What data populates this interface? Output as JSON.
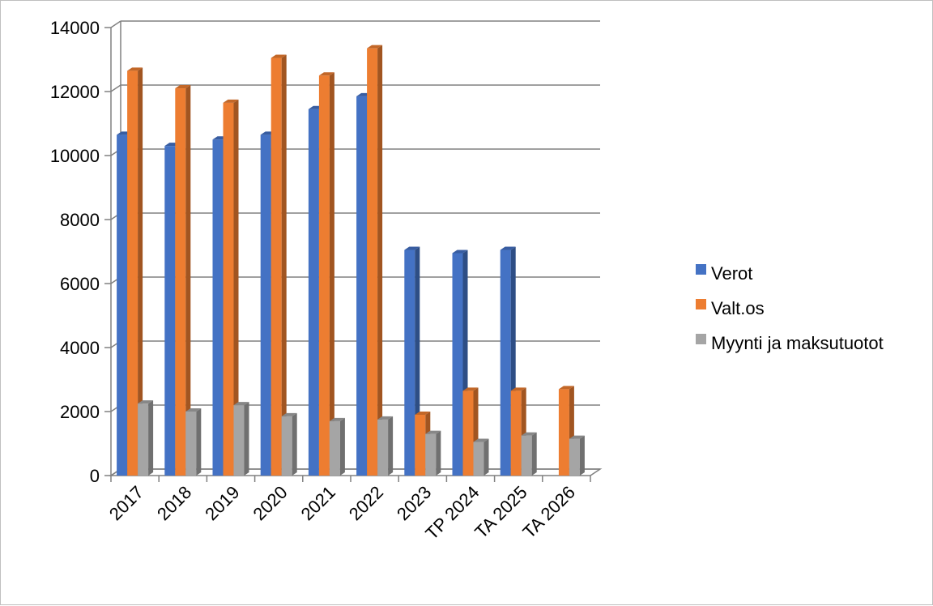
{
  "chart_data": {
    "type": "bar",
    "categories": [
      "2017",
      "2018",
      "2019",
      "2020",
      "2021",
      "2022",
      "2023",
      "TP 2024",
      "TA 2025",
      "TA 2026"
    ],
    "series": [
      {
        "name": "Verot",
        "values": [
          10650,
          10300,
          10500,
          10650,
          11450,
          11850,
          7050,
          6950,
          7050,
          null
        ]
      },
      {
        "name": "Valt.os",
        "values": [
          12650,
          12100,
          11650,
          13050,
          12500,
          13350,
          1900,
          2650,
          2650,
          2700
        ]
      },
      {
        "name": "Myynti ja maksutuotot",
        "values": [
          2250,
          2000,
          2200,
          1850,
          1700,
          1750,
          1300,
          1050,
          1250,
          1150
        ]
      }
    ],
    "colors": {
      "Verot": "#4472c4",
      "Valt.os": "#ed7d31",
      "Myynti ja maksutuotot": "#a5a5a5",
      "grid": "#808080"
    },
    "ylim": [
      0,
      14000
    ],
    "yticks": [
      "0",
      "2000",
      "4000",
      "6000",
      "8000",
      "10000",
      "12000",
      "14000"
    ],
    "grid": true,
    "legend_position": "right",
    "style": "3d-clustered-column"
  }
}
